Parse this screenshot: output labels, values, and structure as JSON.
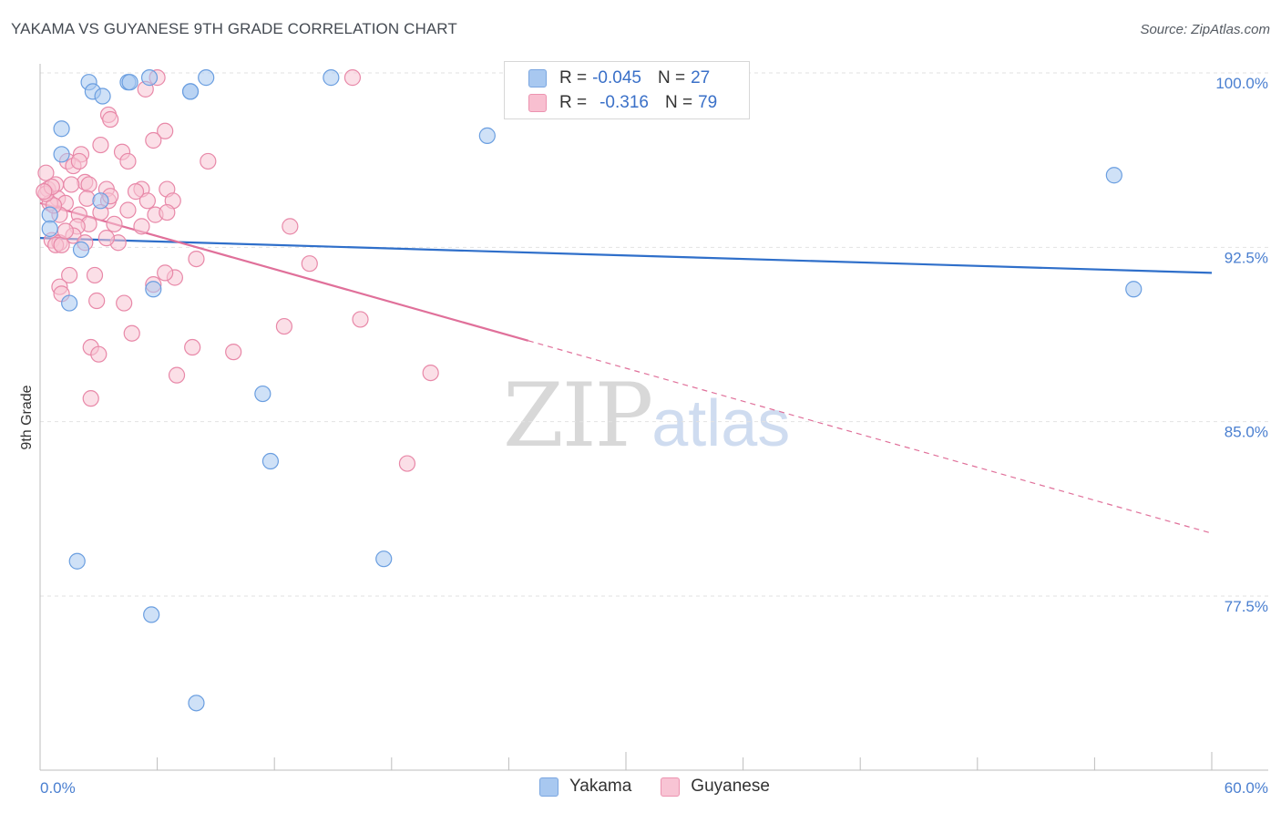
{
  "header": {
    "title": "YAKAMA VS GUYANESE 9TH GRADE CORRELATION CHART",
    "source": "Source: ZipAtlas.com"
  },
  "watermark": {
    "zip": "ZIP",
    "atlas": "atlas"
  },
  "legend": {
    "rows": [
      {
        "r_label": "R =",
        "r_value": "-0.045",
        "n_label": "N =",
        "n_value": "27",
        "color": "#a8c8f0",
        "border": "#7aa6e0"
      },
      {
        "r_label": "R =",
        "r_value": "-0.316",
        "n_label": "N =",
        "n_value": "79",
        "color": "#f8bfd0",
        "border": "#ec93b0"
      }
    ]
  },
  "colors": {
    "yakama_fill": "#a8c8f0",
    "yakama_stroke": "#6a9ee0",
    "yakama_line": "#2f6fca",
    "guyanese_fill": "#f8c4d4",
    "guyanese_stroke": "#e888a8",
    "guyanese_line": "#e0709a",
    "tick_label": "#4a7fd0",
    "grid": "#e2e2e2"
  },
  "chart_data": {
    "type": "scatter",
    "title": "YAKAMA VS GUYANESE 9TH GRADE CORRELATION CHART",
    "xlabel": "",
    "ylabel": "9th Grade",
    "xlim": [
      0,
      60
    ],
    "ylim": [
      72,
      101
    ],
    "x_tick_labels": [
      "0.0%",
      "60.0%"
    ],
    "y_ticks": [
      77.5,
      85.0,
      92.5,
      100.0
    ],
    "y_tick_labels": [
      "77.5%",
      "85.0%",
      "92.5%",
      "100.0%"
    ],
    "grid": true,
    "legend_position": "top-center",
    "series": [
      {
        "name": "Yakama",
        "points": [
          [
            2.5,
            99.6
          ],
          [
            4.5,
            99.6
          ],
          [
            4.6,
            99.6
          ],
          [
            7.7,
            99.2
          ],
          [
            2.7,
            99.2
          ],
          [
            3.2,
            99.0
          ],
          [
            1.1,
            97.6
          ],
          [
            8.5,
            99.8
          ],
          [
            14.9,
            99.8
          ],
          [
            5.6,
            99.8
          ],
          [
            22.9,
            97.3
          ],
          [
            1.1,
            96.5
          ],
          [
            55.0,
            95.6
          ],
          [
            3.1,
            94.5
          ],
          [
            0.5,
            93.9
          ],
          [
            0.5,
            93.3
          ],
          [
            2.1,
            92.4
          ],
          [
            1.5,
            90.1
          ],
          [
            5.8,
            90.7
          ],
          [
            56.0,
            90.7
          ],
          [
            11.4,
            86.2
          ],
          [
            11.8,
            83.3
          ],
          [
            1.9,
            79.0
          ],
          [
            17.6,
            79.1
          ],
          [
            5.7,
            76.7
          ],
          [
            8.0,
            72.9
          ],
          [
            7.7,
            99.2
          ]
        ],
        "trend": {
          "x0": 0,
          "y0": 92.9,
          "x1": 60,
          "y1": 91.4,
          "solid_to": 60
        }
      },
      {
        "name": "Guyanese",
        "points": [
          [
            6.0,
            99.8
          ],
          [
            16.0,
            99.8
          ],
          [
            5.4,
            99.3
          ],
          [
            3.5,
            98.2
          ],
          [
            3.6,
            98.0
          ],
          [
            6.4,
            97.5
          ],
          [
            5.8,
            97.1
          ],
          [
            3.1,
            96.9
          ],
          [
            2.1,
            96.5
          ],
          [
            4.2,
            96.6
          ],
          [
            8.6,
            96.2
          ],
          [
            1.4,
            96.2
          ],
          [
            1.7,
            96.0
          ],
          [
            4.5,
            96.2
          ],
          [
            0.3,
            95.7
          ],
          [
            0.4,
            95.0
          ],
          [
            0.8,
            95.2
          ],
          [
            2.3,
            95.3
          ],
          [
            2.5,
            95.2
          ],
          [
            3.4,
            95.0
          ],
          [
            5.2,
            95.0
          ],
          [
            1.6,
            95.2
          ],
          [
            6.5,
            95.0
          ],
          [
            0.9,
            94.6
          ],
          [
            1.3,
            94.4
          ],
          [
            2.4,
            94.6
          ],
          [
            3.5,
            94.5
          ],
          [
            5.5,
            94.5
          ],
          [
            6.8,
            94.5
          ],
          [
            0.5,
            94.4
          ],
          [
            1.0,
            93.9
          ],
          [
            2.0,
            93.9
          ],
          [
            3.1,
            94.0
          ],
          [
            4.5,
            94.1
          ],
          [
            5.9,
            93.9
          ],
          [
            0.7,
            94.3
          ],
          [
            2.5,
            93.5
          ],
          [
            3.8,
            93.5
          ],
          [
            5.2,
            93.4
          ],
          [
            1.9,
            93.4
          ],
          [
            12.8,
            93.4
          ],
          [
            0.6,
            92.8
          ],
          [
            1.7,
            93.0
          ],
          [
            1.0,
            92.7
          ],
          [
            4.0,
            92.7
          ],
          [
            2.3,
            92.7
          ],
          [
            0.8,
            92.6
          ],
          [
            3.4,
            92.9
          ],
          [
            1.1,
            92.6
          ],
          [
            8.0,
            92.0
          ],
          [
            13.8,
            91.8
          ],
          [
            2.8,
            91.3
          ],
          [
            1.5,
            91.3
          ],
          [
            6.9,
            91.2
          ],
          [
            6.4,
            91.4
          ],
          [
            5.8,
            90.9
          ],
          [
            1.0,
            90.8
          ],
          [
            1.1,
            90.5
          ],
          [
            2.9,
            90.2
          ],
          [
            4.3,
            90.1
          ],
          [
            12.5,
            89.1
          ],
          [
            16.4,
            89.4
          ],
          [
            4.7,
            88.8
          ],
          [
            7.8,
            88.2
          ],
          [
            9.9,
            88.0
          ],
          [
            2.6,
            88.2
          ],
          [
            3.0,
            87.9
          ],
          [
            20.0,
            87.1
          ],
          [
            7.0,
            87.0
          ],
          [
            2.6,
            86.0
          ],
          [
            18.8,
            83.2
          ],
          [
            0.3,
            94.8
          ],
          [
            0.6,
            95.1
          ],
          [
            2.0,
            96.2
          ],
          [
            4.9,
            94.9
          ],
          [
            6.5,
            94.0
          ],
          [
            1.3,
            93.2
          ],
          [
            3.6,
            94.7
          ],
          [
            0.2,
            94.9
          ]
        ],
        "trend": {
          "x0": 0,
          "y0": 94.4,
          "x1": 60,
          "y1": 80.2,
          "solid_to": 25
        }
      }
    ]
  },
  "bottom_legend": [
    {
      "label": "Yakama"
    },
    {
      "label": "Guyanese"
    }
  ]
}
